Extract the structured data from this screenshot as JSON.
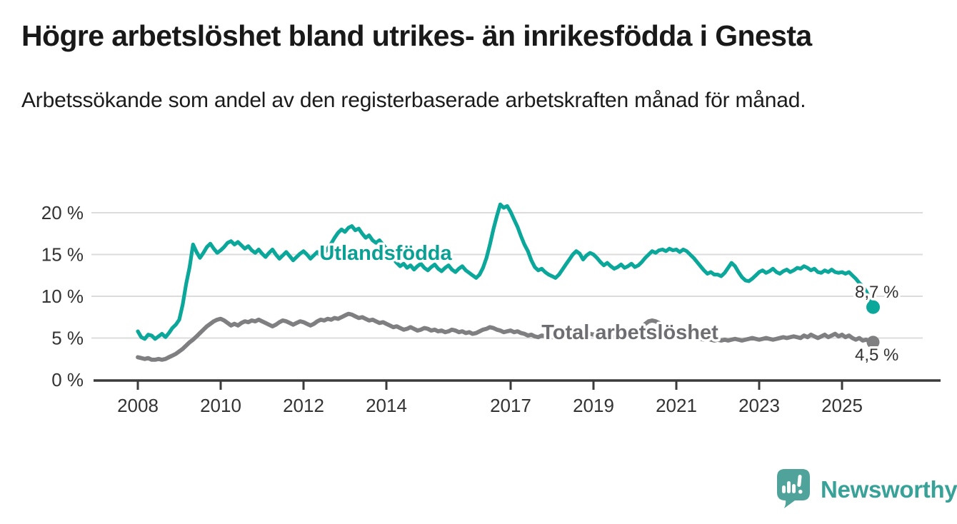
{
  "header": {
    "title": "Högre arbetslöshet bland utrikes- än inrikesfödda i Gnesta",
    "subtitle": "Arbetssökande som andel av den registerbaserade arbetskraften månad för månad."
  },
  "chart_data": {
    "type": "line",
    "title": "Högre arbetslöshet bland utrikes- än inrikesfödda i Gnesta",
    "subtitle": "Arbetssökande som andel av den registerbaserade arbetskraften månad för månad.",
    "x_start_year": 2008,
    "points_per_year": 12,
    "x_ticks": [
      2008,
      2010,
      2012,
      2014,
      2017,
      2019,
      2021,
      2023,
      2025
    ],
    "y_ticks": [
      0,
      5,
      10,
      15,
      20
    ],
    "y_tick_labels": [
      "0 %",
      "5 %",
      "10 %",
      "15 %",
      "20 %"
    ],
    "ylim": [
      0,
      22
    ],
    "grid": true,
    "legend_position": "inline-labels",
    "colors": {
      "accent_teal": "#0BA79B",
      "series_gray": "#7F7F82",
      "axis_text": "#333333",
      "gridline": "#dcdcdc",
      "axis_line": "#3b3b3b"
    },
    "series": [
      {
        "name": "Utlandsfödda",
        "color": "#0BA79B",
        "label_color": "#0AA094",
        "end_label": "8,7 %",
        "end_value": 8.7,
        "values": [
          5.8,
          5.1,
          4.9,
          5.4,
          5.3,
          4.9,
          5.2,
          5.5,
          5.1,
          5.6,
          6.2,
          6.6,
          7.2,
          9.0,
          11.5,
          13.5,
          16.2,
          15.3,
          14.6,
          15.2,
          15.9,
          16.3,
          15.7,
          15.2,
          15.5,
          15.9,
          16.4,
          16.6,
          16.2,
          16.5,
          16.1,
          15.7,
          16.0,
          15.5,
          15.2,
          15.6,
          15.1,
          14.7,
          15.2,
          15.6,
          15.0,
          14.5,
          14.9,
          15.3,
          14.8,
          14.3,
          14.7,
          15.1,
          15.4,
          15.0,
          14.5,
          14.9,
          15.3,
          14.8,
          15.2,
          15.7,
          16.3,
          17.0,
          17.6,
          18.0,
          17.7,
          18.2,
          18.4,
          17.9,
          18.1,
          17.5,
          17.0,
          17.3,
          16.7,
          16.4,
          16.7,
          16.2,
          15.7,
          15.1,
          14.5,
          14.0,
          13.6,
          13.9,
          13.4,
          13.7,
          13.2,
          13.6,
          13.9,
          13.4,
          13.1,
          13.5,
          13.8,
          13.3,
          13.0,
          13.4,
          13.7,
          13.2,
          12.9,
          13.3,
          13.6,
          13.1,
          12.8,
          12.5,
          12.2,
          12.6,
          13.4,
          14.6,
          16.2,
          18.0,
          19.6,
          21.0,
          20.6,
          20.8,
          20.1,
          19.2,
          18.3,
          17.2,
          16.2,
          15.4,
          14.3,
          13.5,
          13.1,
          13.3,
          12.9,
          12.6,
          12.4,
          12.2,
          12.6,
          13.2,
          13.8,
          14.4,
          15.0,
          15.4,
          15.1,
          14.4,
          14.9,
          15.2,
          15.0,
          14.6,
          14.1,
          13.7,
          14.0,
          13.6,
          13.3,
          13.5,
          13.8,
          13.4,
          13.6,
          13.9,
          13.5,
          13.7,
          14.1,
          14.6,
          15.0,
          15.4,
          15.2,
          15.5,
          15.6,
          15.4,
          15.7,
          15.5,
          15.6,
          15.3,
          15.6,
          15.4,
          15.0,
          14.6,
          14.1,
          13.6,
          13.1,
          12.7,
          12.9,
          12.6,
          12.6,
          12.4,
          12.8,
          13.4,
          14.0,
          13.6,
          12.9,
          12.3,
          11.9,
          11.8,
          12.1,
          12.5,
          12.9,
          13.1,
          12.8,
          13.0,
          13.3,
          12.9,
          12.7,
          13.0,
          13.2,
          12.9,
          13.1,
          13.4,
          13.3,
          13.6,
          13.4,
          13.1,
          13.3,
          12.9,
          12.8,
          13.1,
          12.9,
          13.2,
          12.9,
          12.8,
          12.9,
          12.7,
          12.9,
          12.5,
          12.1,
          11.6,
          11.2,
          10.6,
          9.7,
          8.7
        ]
      },
      {
        "name": "Total arbetslöshet",
        "color": "#7F7F82",
        "label_color": "#6E6E72",
        "end_label": "4,5 %",
        "end_value": 4.5,
        "values": [
          2.7,
          2.6,
          2.5,
          2.6,
          2.4,
          2.4,
          2.5,
          2.4,
          2.5,
          2.7,
          2.9,
          3.1,
          3.4,
          3.7,
          4.1,
          4.5,
          4.8,
          5.2,
          5.6,
          6.0,
          6.4,
          6.7,
          7.0,
          7.2,
          7.3,
          7.1,
          6.8,
          6.5,
          6.7,
          6.5,
          6.8,
          7.0,
          6.9,
          7.1,
          7.0,
          7.2,
          7.0,
          6.8,
          6.6,
          6.4,
          6.6,
          6.9,
          7.1,
          7.0,
          6.8,
          6.6,
          6.8,
          7.0,
          6.9,
          6.7,
          6.5,
          6.7,
          7.0,
          7.2,
          7.1,
          7.3,
          7.2,
          7.4,
          7.3,
          7.5,
          7.7,
          7.9,
          7.8,
          7.6,
          7.4,
          7.5,
          7.3,
          7.1,
          7.2,
          7.0,
          6.8,
          6.9,
          6.7,
          6.5,
          6.3,
          6.4,
          6.2,
          6.0,
          6.1,
          6.3,
          6.1,
          5.9,
          6.0,
          6.2,
          6.1,
          5.9,
          6.0,
          5.8,
          5.9,
          5.7,
          5.8,
          6.0,
          5.9,
          5.7,
          5.8,
          5.6,
          5.7,
          5.5,
          5.6,
          5.8,
          6.0,
          6.1,
          6.3,
          6.2,
          6.0,
          5.9,
          5.7,
          5.8,
          5.9,
          5.7,
          5.8,
          5.6,
          5.5,
          5.3,
          5.4,
          5.2,
          5.1,
          5.3,
          5.2,
          5.0,
          5.1,
          5.2,
          5.0,
          5.1,
          5.3,
          5.2,
          5.4,
          5.3,
          5.1,
          5.2,
          5.4,
          5.5,
          5.4,
          5.6,
          5.5,
          5.3,
          5.4,
          5.2,
          5.1,
          5.3,
          5.2,
          5.0,
          5.1,
          5.3,
          5.5,
          5.8,
          6.2,
          6.7,
          7.0,
          7.1,
          7.0,
          6.8,
          6.6,
          6.4,
          6.2,
          6.0,
          5.9,
          5.7,
          5.5,
          5.4,
          5.2,
          5.1,
          5.0,
          4.9,
          4.8,
          4.9,
          4.8,
          4.7,
          4.8,
          4.7,
          4.8,
          4.7,
          4.8,
          4.9,
          4.8,
          4.7,
          4.8,
          4.9,
          5.0,
          4.9,
          4.8,
          4.9,
          5.0,
          4.9,
          4.8,
          4.9,
          5.0,
          5.1,
          5.0,
          5.1,
          5.2,
          5.1,
          5.0,
          5.3,
          5.1,
          5.4,
          5.2,
          5.0,
          5.2,
          5.4,
          5.1,
          5.3,
          5.5,
          5.2,
          5.4,
          5.1,
          5.3,
          5.0,
          4.8,
          5.0,
          4.7,
          4.8,
          4.6,
          4.5
        ]
      }
    ]
  },
  "footer": {
    "brand": "Newsworthy",
    "logo_icon": "bar-chart-speech-bubble-icon",
    "logo_color": "#4FA39A",
    "wordmark_color": "#38A198"
  }
}
